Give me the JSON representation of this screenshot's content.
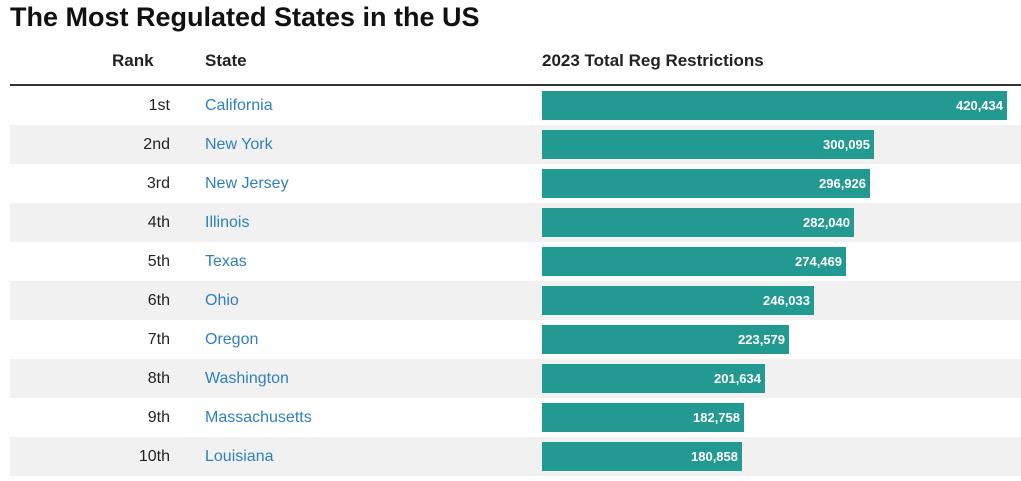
{
  "chart_data": {
    "type": "bar",
    "title": "The Most Regulated States in the US",
    "columns": [
      "Rank",
      "State",
      "2023 Total Reg Restrictions"
    ],
    "rows": [
      {
        "rank": "1st",
        "state": "California",
        "value": 420434,
        "label": "420,434"
      },
      {
        "rank": "2nd",
        "state": "New York",
        "value": 300095,
        "label": "300,095"
      },
      {
        "rank": "3rd",
        "state": "New Jersey",
        "value": 296926,
        "label": "296,926"
      },
      {
        "rank": "4th",
        "state": "Illinois",
        "value": 282040,
        "label": "282,040"
      },
      {
        "rank": "5th",
        "state": "Texas",
        "value": 274469,
        "label": "274,469"
      },
      {
        "rank": "6th",
        "state": "Ohio",
        "value": 246033,
        "label": "246,033"
      },
      {
        "rank": "7th",
        "state": "Oregon",
        "value": 223579,
        "label": "223,579"
      },
      {
        "rank": "8th",
        "state": "Washington",
        "value": 201634,
        "label": "201,634"
      },
      {
        "rank": "9th",
        "state": "Massachusetts",
        "value": 182758,
        "label": "182,758"
      },
      {
        "rank": "10th",
        "state": "Louisiana",
        "value": 180858,
        "label": "180,858"
      }
    ],
    "bar_color": "#229a92",
    "link_color": "#2f7fc1",
    "stripe_color": "#f1f1f1"
  }
}
